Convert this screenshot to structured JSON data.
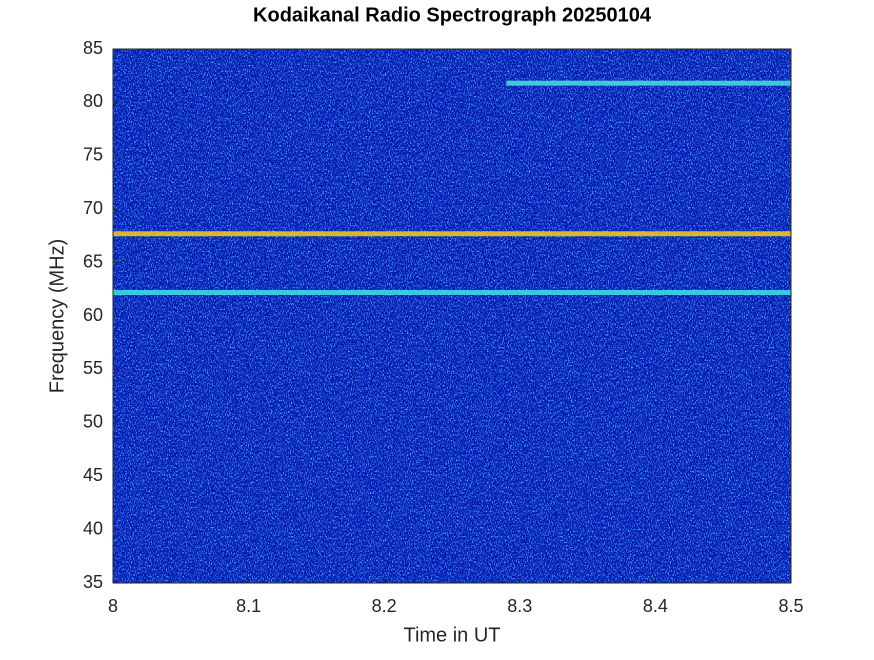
{
  "chart_data": {
    "type": "spectrogram",
    "title": "Kodaikanal Radio Spectrograph  20250104",
    "xlabel": "Time in UT",
    "ylabel": "Frequency (MHz)",
    "xlim": [
      8,
      8.5
    ],
    "xticks": [
      8,
      8.1,
      8.2,
      8.3,
      8.4,
      8.5
    ],
    "ylim": [
      35,
      85
    ],
    "yticks": [
      35,
      40,
      45,
      50,
      55,
      60,
      65,
      70,
      75,
      80,
      85
    ],
    "background_color": "#0a1fb5",
    "bands": [
      {
        "y": 67.7,
        "x_start": 8,
        "x_end": 8.5,
        "color": "#f2c41a"
      },
      {
        "y": 62.2,
        "x_start": 8,
        "x_end": 8.5,
        "color": "#3fd8e8"
      },
      {
        "y": 81.8,
        "x_start": 8.29,
        "x_end": 8.5,
        "color": "#4ad6e0"
      }
    ]
  }
}
